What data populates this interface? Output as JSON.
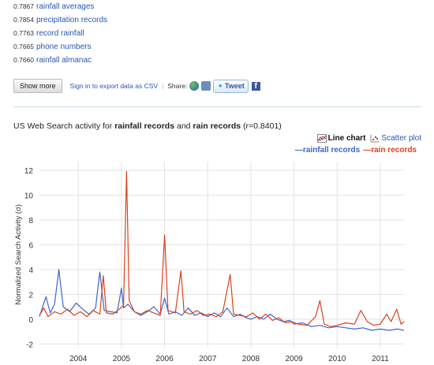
{
  "related_terms": [
    {
      "score": "0.7867",
      "term": "rainfall averages"
    },
    {
      "score": "0.7854",
      "term": "precipitation records"
    },
    {
      "score": "0.7763",
      "term": "record rainfall"
    },
    {
      "score": "0.7665",
      "term": "phone numbers"
    },
    {
      "score": "0.7660",
      "term": "rainfall almanac"
    }
  ],
  "toolbar": {
    "show_more_label": "Show more",
    "export_label": "Sign in to export data as CSV",
    "separator": "|",
    "share_label": "Share:",
    "tweet_label": "Tweet",
    "fb_label": "f"
  },
  "chart_title": {
    "prefix": "US Web Search activity for ",
    "term1": "rainfall records",
    "conj": " and ",
    "term2": "rain records",
    "suffix": " (r=0.8401)"
  },
  "chart_toggles": {
    "line_label": "Line chart",
    "scatter_label": "Scatter plot"
  },
  "colors": {
    "rainfall_records": "#3b66c9",
    "rain_records": "#d9431e",
    "link": "#2956b2"
  },
  "chart_data": {
    "type": "line",
    "title": "",
    "xlabel": "",
    "ylabel": "Normalized Search Activity (σ)",
    "xlim": [
      2003.1,
      2011.55
    ],
    "ylim": [
      -2.3,
      12.7
    ],
    "xticks": [
      2004,
      2005,
      2006,
      2007,
      2008,
      2009,
      2010,
      2011
    ],
    "yticks": [
      -2,
      0,
      2,
      4,
      6,
      8,
      10,
      12
    ],
    "grid": true,
    "legend": "top-right",
    "series": [
      {
        "name": "rainfall records",
        "color": "#3b66c9",
        "points": [
          [
            2003.1,
            0.2
          ],
          [
            2003.25,
            1.8
          ],
          [
            2003.35,
            0.5
          ],
          [
            2003.45,
            1.2
          ],
          [
            2003.55,
            4.0
          ],
          [
            2003.65,
            1.0
          ],
          [
            2003.8,
            0.6
          ],
          [
            2003.95,
            1.3
          ],
          [
            2004.1,
            0.8
          ],
          [
            2004.25,
            0.4
          ],
          [
            2004.4,
            0.9
          ],
          [
            2004.5,
            3.8
          ],
          [
            2004.6,
            0.7
          ],
          [
            2004.75,
            0.6
          ],
          [
            2004.9,
            0.5
          ],
          [
            2005.0,
            2.5
          ],
          [
            2005.05,
            0.9
          ],
          [
            2005.15,
            1.2
          ],
          [
            2005.3,
            0.6
          ],
          [
            2005.45,
            0.3
          ],
          [
            2005.6,
            0.6
          ],
          [
            2005.75,
            1.0
          ],
          [
            2005.9,
            0.4
          ],
          [
            2006.0,
            1.7
          ],
          [
            2006.1,
            0.4
          ],
          [
            2006.25,
            0.6
          ],
          [
            2006.4,
            0.3
          ],
          [
            2006.55,
            0.9
          ],
          [
            2006.7,
            0.3
          ],
          [
            2006.85,
            0.5
          ],
          [
            2007.0,
            0.2
          ],
          [
            2007.15,
            0.5
          ],
          [
            2007.3,
            0.2
          ],
          [
            2007.45,
            0.9
          ],
          [
            2007.6,
            0.2
          ],
          [
            2007.75,
            0.4
          ],
          [
            2007.9,
            0.1
          ],
          [
            2008.0,
            0.0
          ],
          [
            2008.15,
            0.2
          ],
          [
            2008.3,
            0.0
          ],
          [
            2008.45,
            0.4
          ],
          [
            2008.6,
            0.0
          ],
          [
            2008.75,
            -0.2
          ],
          [
            2008.9,
            -0.1
          ],
          [
            2009.0,
            -0.4
          ],
          [
            2009.2,
            -0.3
          ],
          [
            2009.4,
            -0.6
          ],
          [
            2009.6,
            -0.5
          ],
          [
            2009.8,
            -0.7
          ],
          [
            2010.0,
            -0.6
          ],
          [
            2010.2,
            -0.7
          ],
          [
            2010.4,
            -0.8
          ],
          [
            2010.6,
            -0.7
          ],
          [
            2010.8,
            -0.9
          ],
          [
            2011.0,
            -0.8
          ],
          [
            2011.2,
            -0.9
          ],
          [
            2011.4,
            -0.8
          ],
          [
            2011.55,
            -0.9
          ]
        ]
      },
      {
        "name": "rain records",
        "color": "#d9431e",
        "points": [
          [
            2003.1,
            0.3
          ],
          [
            2003.2,
            0.9
          ],
          [
            2003.3,
            0.2
          ],
          [
            2003.45,
            0.6
          ],
          [
            2003.6,
            0.4
          ],
          [
            2003.75,
            0.8
          ],
          [
            2003.9,
            0.3
          ],
          [
            2004.05,
            0.6
          ],
          [
            2004.2,
            0.2
          ],
          [
            2004.35,
            0.7
          ],
          [
            2004.5,
            0.4
          ],
          [
            2004.58,
            3.5
          ],
          [
            2004.65,
            0.5
          ],
          [
            2004.8,
            0.4
          ],
          [
            2004.95,
            0.8
          ],
          [
            2005.05,
            1.1
          ],
          [
            2005.12,
            11.9
          ],
          [
            2005.18,
            1.5
          ],
          [
            2005.3,
            0.6
          ],
          [
            2005.45,
            0.4
          ],
          [
            2005.6,
            0.7
          ],
          [
            2005.75,
            0.5
          ],
          [
            2005.9,
            0.3
          ],
          [
            2006.0,
            6.8
          ],
          [
            2006.08,
            0.7
          ],
          [
            2006.25,
            0.5
          ],
          [
            2006.38,
            3.9
          ],
          [
            2006.45,
            0.6
          ],
          [
            2006.6,
            0.4
          ],
          [
            2006.75,
            0.7
          ],
          [
            2006.9,
            0.3
          ],
          [
            2007.05,
            0.4
          ],
          [
            2007.2,
            0.2
          ],
          [
            2007.35,
            0.6
          ],
          [
            2007.52,
            3.6
          ],
          [
            2007.6,
            0.4
          ],
          [
            2007.75,
            0.3
          ],
          [
            2007.9,
            0.2
          ],
          [
            2008.05,
            0.5
          ],
          [
            2008.2,
            0.0
          ],
          [
            2008.35,
            0.4
          ],
          [
            2008.5,
            -0.1
          ],
          [
            2008.65,
            0.1
          ],
          [
            2008.8,
            -0.3
          ],
          [
            2008.95,
            -0.2
          ],
          [
            2009.1,
            -0.4
          ],
          [
            2009.3,
            -0.5
          ],
          [
            2009.5,
            0.2
          ],
          [
            2009.6,
            1.5
          ],
          [
            2009.7,
            -0.4
          ],
          [
            2009.85,
            -0.6
          ],
          [
            2010.0,
            -0.5
          ],
          [
            2010.2,
            -0.3
          ],
          [
            2010.4,
            -0.4
          ],
          [
            2010.55,
            0.7
          ],
          [
            2010.7,
            -0.2
          ],
          [
            2010.85,
            -0.5
          ],
          [
            2011.0,
            -0.4
          ],
          [
            2011.15,
            0.4
          ],
          [
            2011.25,
            -0.2
          ],
          [
            2011.38,
            0.8
          ],
          [
            2011.48,
            -0.4
          ],
          [
            2011.55,
            -0.2
          ]
        ]
      }
    ]
  }
}
